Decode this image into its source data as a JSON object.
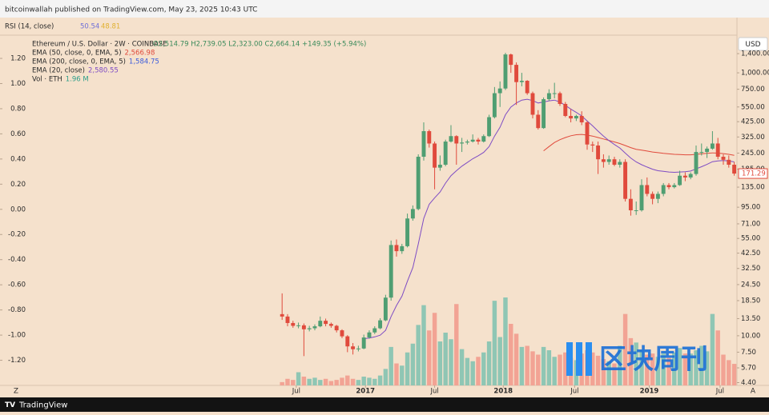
{
  "header": {
    "publisher": "bitcoinwallah published on TradingView.com, May 23, 2025 10:43 UTC",
    "footer": "TradingView",
    "watermark": "区块周刊"
  },
  "chart_data": {
    "type": "candlestick",
    "rsi": {
      "label": "RSI (14, close)",
      "reading1": "50.54",
      "reading2": "48.81",
      "color1": "#6f6fd8",
      "color2": "#e0b030"
    },
    "symbol": "Ethereum / U.S. Dollar · 2W · COINBASE",
    "ohlc_text": "O2,514.79 H2,739.05 L2,323.00 C2,664.14 +149.35 (+5.94%)",
    "currency": "USD",
    "up_color": "#4f9e72",
    "down_color": "#e04a3c",
    "volume_up_color": "#8fc6b4",
    "volume_down_color": "#f2a394",
    "log_scale": true,
    "grid": false,
    "xlim": [
      -46.2,
      83.5
    ],
    "xticks": [
      {
        "value": 2.6,
        "label": "Jul"
      },
      {
        "value": 15.3,
        "label": "2017"
      },
      {
        "value": 28,
        "label": "Jul"
      },
      {
        "value": 40.6,
        "label": "2018"
      },
      {
        "value": 53.7,
        "label": "Jul"
      },
      {
        "value": 67.4,
        "label": "2019"
      },
      {
        "value": 80.4,
        "label": "Jul"
      }
    ],
    "x_corner_left": "Z",
    "x_corner_right": "A",
    "ylim": [
      4.19,
      2045
    ],
    "yticks": [
      {
        "value": 1400,
        "label": "1,400.00"
      },
      {
        "value": 1000,
        "label": "1,000.00"
      },
      {
        "value": 750,
        "label": "750.00"
      },
      {
        "value": 550,
        "label": "550.00"
      },
      {
        "value": 425,
        "label": "425.00"
      },
      {
        "value": 325,
        "label": "325.00"
      },
      {
        "value": 245,
        "label": "245.00"
      },
      {
        "value": 185,
        "label": "185.00"
      },
      {
        "value": 135,
        "label": "135.00"
      },
      {
        "value": 95,
        "label": "95.00"
      },
      {
        "value": 71,
        "label": "71.00"
      },
      {
        "value": 55,
        "label": "55.00"
      },
      {
        "value": 42.5,
        "label": "42.50"
      },
      {
        "value": 32.5,
        "label": "32.50"
      },
      {
        "value": 24.5,
        "label": "24.50"
      },
      {
        "value": 18.5,
        "label": "18.50"
      },
      {
        "value": 13.5,
        "label": "13.50"
      },
      {
        "value": 10,
        "label": "10.00"
      },
      {
        "value": 7.5,
        "label": "7.50"
      },
      {
        "value": 5.7,
        "label": "5.70"
      },
      {
        "value": 4.4,
        "label": "4.40"
      }
    ],
    "y2lim": [
      -1.4,
      1.41
    ],
    "y2ticks": [
      {
        "value": 1.2,
        "label": "1.20"
      },
      {
        "value": 1.0,
        "label": "1.00"
      },
      {
        "value": 0.8,
        "label": "0.80"
      },
      {
        "value": 0.6,
        "label": "0.60"
      },
      {
        "value": 0.4,
        "label": "0.40"
      },
      {
        "value": 0.2,
        "label": "0.20"
      },
      {
        "value": 0,
        "label": "0.00"
      },
      {
        "value": -0.2,
        "label": "-0.20"
      },
      {
        "value": -0.4,
        "label": "-0.40"
      },
      {
        "value": -0.6,
        "label": "-0.60"
      },
      {
        "value": -0.8,
        "label": "-0.80"
      },
      {
        "value": -1.0,
        "label": "-1.00"
      },
      {
        "value": -1.2,
        "label": "-1.20"
      }
    ],
    "open": [
      14.6,
      14.0,
      12.5,
      11.9,
      12.0,
      11.2,
      11.4,
      11.8,
      13.0,
      12.3,
      11.9,
      11.0,
      9.9,
      8.3,
      7.9,
      8.0,
      9.7,
      10.6,
      11.4,
      13.1,
      19.5,
      49,
      44,
      48,
      78,
      92,
      230,
      360,
      290,
      190,
      200,
      300,
      330,
      290,
      295,
      300,
      310,
      300,
      330,
      460,
      700,
      760,
      1380,
      1150,
      850,
      870,
      700,
      480,
      380,
      630,
      700,
      700,
      580,
      470,
      450,
      470,
      420,
      285,
      280,
      220,
      210,
      220,
      200,
      210,
      110,
      90,
      90,
      140,
      120,
      110,
      120,
      140,
      135,
      140,
      165,
      160,
      170,
      250,
      250,
      265,
      290,
      230,
      218,
      200
    ],
    "high": [
      21,
      14.6,
      13.0,
      12.6,
      12.4,
      11.9,
      12.2,
      14.0,
      13.5,
      12.6,
      12.1,
      11.2,
      10.1,
      8.8,
      8.4,
      10.2,
      11.0,
      11.8,
      13.6,
      20.5,
      53,
      54,
      50,
      85,
      98,
      240,
      420,
      370,
      300,
      235,
      310,
      400,
      335,
      320,
      310,
      340,
      320,
      340,
      480,
      780,
      860,
      1420,
      1400,
      1200,
      1000,
      880,
      720,
      520,
      650,
      750,
      840,
      720,
      600,
      530,
      480,
      510,
      430,
      300,
      300,
      240,
      235,
      230,
      220,
      220,
      130,
      105,
      155,
      160,
      125,
      125,
      145,
      145,
      145,
      180,
      175,
      175,
      280,
      290,
      275,
      360,
      320,
      240,
      235,
      210
    ],
    "low": [
      13.2,
      11.8,
      11.5,
      11.4,
      7.0,
      10.8,
      11.0,
      11.6,
      11.8,
      11.5,
      10.6,
      9.6,
      7.5,
      7.2,
      7.6,
      7.9,
      9.5,
      10.3,
      11.2,
      12.9,
      18.5,
      40,
      42,
      47,
      75,
      90,
      215,
      270,
      130,
      180,
      195,
      295,
      200,
      250,
      285,
      295,
      285,
      295,
      325,
      450,
      550,
      740,
      1000,
      570,
      790,
      680,
      450,
      370,
      375,
      610,
      640,
      560,
      460,
      420,
      430,
      400,
      260,
      250,
      170,
      190,
      200,
      195,
      190,
      105,
      82,
      83,
      88,
      115,
      100,
      102,
      115,
      130,
      132,
      138,
      150,
      155,
      165,
      235,
      225,
      260,
      220,
      200,
      190,
      165
    ],
    "close": [
      14.0,
      12.5,
      11.9,
      12.0,
      11.2,
      11.4,
      11.8,
      13.0,
      12.3,
      11.9,
      11.0,
      9.9,
      8.3,
      7.9,
      8.0,
      9.7,
      10.6,
      11.4,
      13.1,
      19.5,
      49,
      44,
      48,
      78,
      92,
      230,
      360,
      290,
      190,
      200,
      300,
      330,
      290,
      295,
      300,
      310,
      300,
      330,
      460,
      700,
      760,
      1380,
      1150,
      850,
      870,
      700,
      480,
      380,
      630,
      700,
      700,
      580,
      470,
      450,
      470,
      420,
      285,
      280,
      220,
      210,
      220,
      200,
      210,
      110,
      90,
      90,
      140,
      120,
      110,
      120,
      140,
      135,
      140,
      165,
      160,
      170,
      250,
      250,
      265,
      290,
      230,
      218,
      200,
      171.29
    ],
    "volume": [
      0.3,
      0.6,
      0.5,
      1.2,
      0.8,
      0.6,
      0.7,
      0.5,
      0.6,
      0.4,
      0.5,
      0.7,
      0.9,
      0.6,
      0.5,
      0.8,
      0.7,
      0.6,
      0.9,
      1.5,
      3.5,
      2.0,
      1.8,
      3.0,
      3.8,
      5.5,
      7.3,
      5.0,
      6.6,
      4.0,
      4.8,
      4.2,
      7.4,
      3.3,
      2.5,
      2.2,
      2.6,
      3.0,
      4.0,
      7.7,
      4.4,
      8.0,
      5.6,
      4.7,
      3.5,
      3.6,
      3.1,
      2.8,
      3.5,
      3.2,
      2.6,
      2.8,
      3.0,
      2.5,
      2.3,
      2.9,
      3.2,
      3.0,
      2.7,
      2.4,
      2.2,
      2.0,
      3.6,
      6.5,
      4.3,
      3.9,
      3.2,
      2.8,
      2.9,
      2.6,
      2.9,
      2.5,
      3.0,
      3.4,
      2.9,
      2.9,
      3.2,
      3.6,
      3.1,
      6.5,
      5.0,
      2.8,
      2.3,
      1.96
    ],
    "indicators": [
      {
        "label": "EMA (50, close, 0, EMA, 5)",
        "reading": "2,566.98",
        "color": "#e04a3c",
        "values": [
          null,
          null,
          null,
          null,
          null,
          null,
          null,
          null,
          null,
          null,
          null,
          null,
          null,
          null,
          null,
          null,
          null,
          null,
          null,
          null,
          null,
          null,
          null,
          null,
          null,
          null,
          null,
          null,
          null,
          null,
          null,
          null,
          null,
          null,
          null,
          null,
          null,
          null,
          null,
          null,
          null,
          null,
          null,
          null,
          null,
          null,
          null,
          null,
          255,
          275,
          295,
          310,
          322,
          332,
          338,
          340,
          336,
          330,
          322,
          314,
          306,
          298,
          290,
          280,
          270,
          262,
          258,
          254,
          250,
          247,
          244,
          242,
          240,
          239,
          238,
          238,
          240,
          242,
          244,
          246,
          245,
          243,
          240,
          236
        ]
      },
      {
        "label": "EMA (200, close, 0, EMA, 5)",
        "reading": "1,584.75",
        "color": "#3b5bdb"
      },
      {
        "label": "EMA (20, close)",
        "reading": "2,580.55",
        "color": "#7e4cc4",
        "values": [
          null,
          null,
          null,
          null,
          null,
          null,
          null,
          null,
          null,
          null,
          null,
          null,
          null,
          null,
          null,
          9.5,
          9.6,
          9.8,
          10.1,
          11,
          14,
          17,
          20,
          26,
          33,
          50,
          78,
          100,
          112,
          124,
          145,
          165,
          180,
          195,
          208,
          222,
          234,
          248,
          275,
          330,
          385,
          480,
          550,
          590,
          620,
          630,
          615,
          590,
          600,
          612,
          620,
          600,
          565,
          530,
          500,
          470,
          430,
          395,
          360,
          330,
          305,
          285,
          268,
          245,
          225,
          210,
          200,
          192,
          185,
          180,
          178,
          176,
          175,
          176,
          177,
          179,
          186,
          193,
          201,
          211,
          214,
          215,
          214,
          210
        ]
      },
      {
        "label": "Vol · ETH",
        "reading": "1.96 M",
        "color": "#2e9e8a"
      }
    ]
  }
}
